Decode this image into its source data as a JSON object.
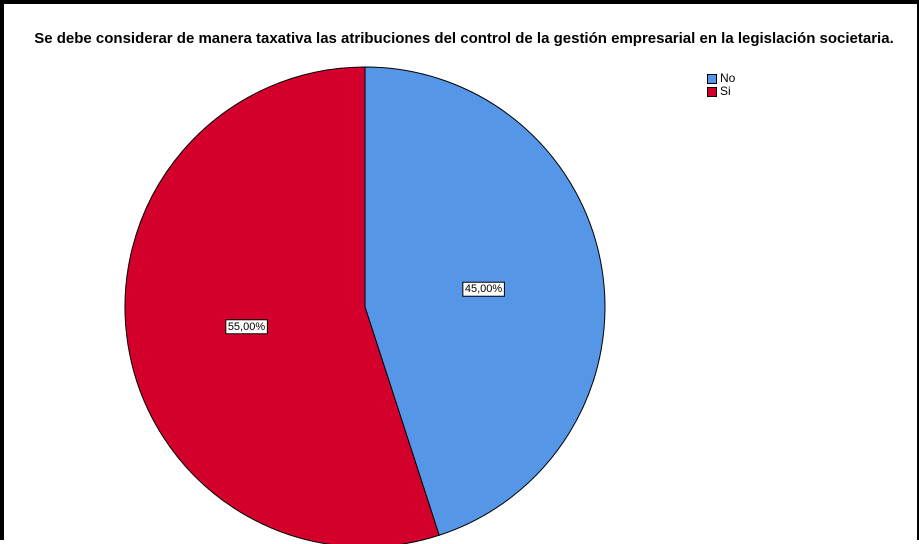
{
  "chart_data": {
    "type": "pie",
    "title": "Se debe considerar de manera taxativa las atribuciones del control de la gestión empresarial en la legislación societaria.",
    "categories": [
      "No",
      "Si"
    ],
    "values": [
      45.0,
      55.0
    ],
    "value_labels": [
      "45,00%",
      "55,00%"
    ],
    "colors": [
      "#5596E6",
      "#D3002C"
    ],
    "legend_position": "top-right"
  }
}
